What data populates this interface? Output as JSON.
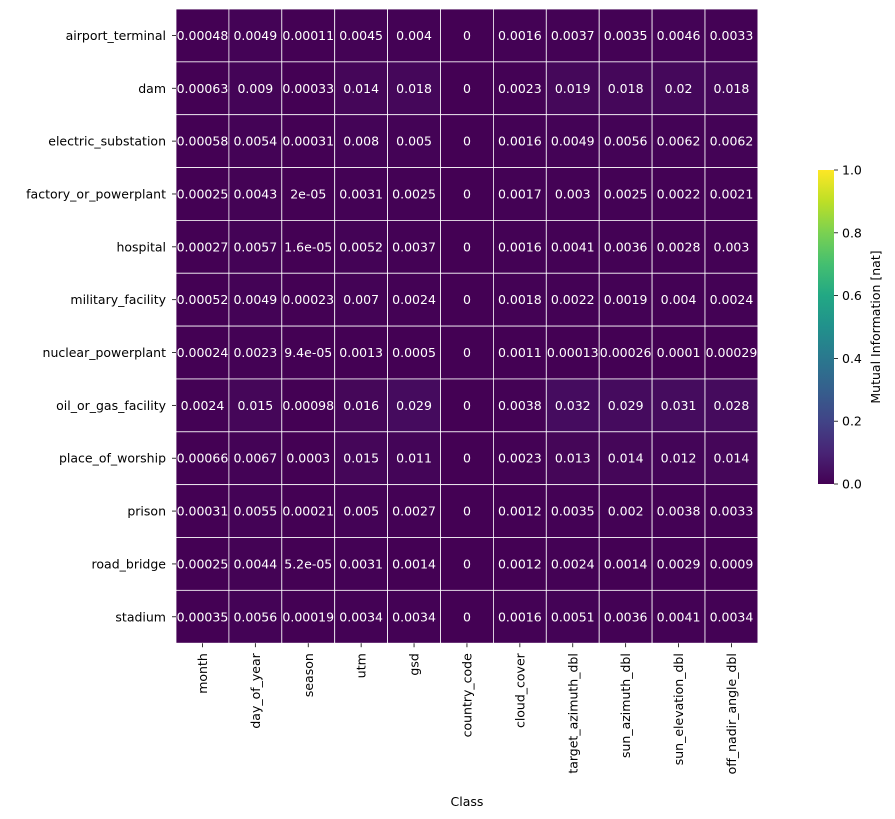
{
  "chart_data": {
    "type": "heatmap",
    "title": "",
    "xlabel": "Class",
    "ylabel": "",
    "x_categories": [
      "month",
      "day_of_year",
      "season",
      "utm",
      "gsd",
      "country_code",
      "cloud_cover",
      "target_azimuth_dbl",
      "sun_azimuth_dbl",
      "sun_elevation_dbl",
      "off_nadir_angle_dbl"
    ],
    "y_categories": [
      "airport_terminal",
      "dam",
      "electric_substation",
      "factory_or_powerplant",
      "hospital",
      "military_facility",
      "nuclear_powerplant",
      "oil_or_gas_facility",
      "place_of_worship",
      "prison",
      "road_bridge",
      "stadium"
    ],
    "values": [
      [
        0.00048,
        0.0049,
        0.00011,
        0.0045,
        0.004,
        0,
        0.0016,
        0.0037,
        0.0035,
        0.0046,
        0.0033
      ],
      [
        0.00063,
        0.009,
        0.00033,
        0.014,
        0.018,
        0,
        0.0023,
        0.019,
        0.018,
        0.02,
        0.018
      ],
      [
        0.00058,
        0.0054,
        0.00031,
        0.008,
        0.005,
        0,
        0.0016,
        0.0049,
        0.0056,
        0.0062,
        0.0062
      ],
      [
        0.00025,
        0.0043,
        2e-05,
        0.0031,
        0.0025,
        0,
        0.0017,
        0.003,
        0.0025,
        0.0022,
        0.0021
      ],
      [
        0.00027,
        0.0057,
        1.6e-05,
        0.0052,
        0.0037,
        0,
        0.0016,
        0.0041,
        0.0036,
        0.0028,
        0.003
      ],
      [
        0.00052,
        0.0049,
        0.00023,
        0.007,
        0.0024,
        0,
        0.0018,
        0.0022,
        0.0019,
        0.004,
        0.0024
      ],
      [
        0.00024,
        0.0023,
        9.4e-05,
        0.0013,
        0.0005,
        0,
        0.0011,
        0.00013,
        0.00026,
        0.0001,
        0.00029
      ],
      [
        0.0024,
        0.015,
        0.00098,
        0.016,
        0.029,
        0,
        0.0038,
        0.032,
        0.029,
        0.031,
        0.028
      ],
      [
        0.00066,
        0.0067,
        0.0003,
        0.015,
        0.011,
        0,
        0.0023,
        0.013,
        0.014,
        0.012,
        0.014
      ],
      [
        0.00031,
        0.0055,
        0.00021,
        0.005,
        0.0027,
        0,
        0.0012,
        0.0035,
        0.002,
        0.0038,
        0.0033
      ],
      [
        0.00025,
        0.0044,
        5.2e-05,
        0.0031,
        0.0014,
        0,
        0.0012,
        0.0024,
        0.0014,
        0.0029,
        0.0009
      ],
      [
        0.00035,
        0.0056,
        0.00019,
        0.0034,
        0.0034,
        0,
        0.0016,
        0.0051,
        0.0036,
        0.0041,
        0.0034
      ]
    ],
    "cell_labels": [
      [
        "0.00048",
        "0.0049",
        "0.00011",
        "0.0045",
        "0.004",
        "0",
        "0.0016",
        "0.0037",
        "0.0035",
        "0.0046",
        "0.0033"
      ],
      [
        "0.00063",
        "0.009",
        "0.00033",
        "0.014",
        "0.018",
        "0",
        "0.0023",
        "0.019",
        "0.018",
        "0.02",
        "0.018"
      ],
      [
        "0.00058",
        "0.0054",
        "0.00031",
        "0.008",
        "0.005",
        "0",
        "0.0016",
        "0.0049",
        "0.0056",
        "0.0062",
        "0.0062"
      ],
      [
        "0.00025",
        "0.0043",
        "2e-05",
        "0.0031",
        "0.0025",
        "0",
        "0.0017",
        "0.003",
        "0.0025",
        "0.0022",
        "0.0021"
      ],
      [
        "0.00027",
        "0.0057",
        "1.6e-05",
        "0.0052",
        "0.0037",
        "0",
        "0.0016",
        "0.0041",
        "0.0036",
        "0.0028",
        "0.003"
      ],
      [
        "0.00052",
        "0.0049",
        "0.00023",
        "0.007",
        "0.0024",
        "0",
        "0.0018",
        "0.0022",
        "0.0019",
        "0.004",
        "0.0024"
      ],
      [
        "0.00024",
        "0.0023",
        "9.4e-05",
        "0.0013",
        "0.0005",
        "0",
        "0.0011",
        "0.00013",
        "0.00026",
        "0.0001",
        "0.00029"
      ],
      [
        "0.0024",
        "0.015",
        "0.00098",
        "0.016",
        "0.029",
        "0",
        "0.0038",
        "0.032",
        "0.029",
        "0.031",
        "0.028"
      ],
      [
        "0.00066",
        "0.0067",
        "0.0003",
        "0.015",
        "0.011",
        "0",
        "0.0023",
        "0.013",
        "0.014",
        "0.012",
        "0.014"
      ],
      [
        "0.00031",
        "0.0055",
        "0.00021",
        "0.005",
        "0.0027",
        "0",
        "0.0012",
        "0.0035",
        "0.002",
        "0.0038",
        "0.0033"
      ],
      [
        "0.00025",
        "0.0044",
        "5.2e-05",
        "0.0031",
        "0.0014",
        "0",
        "0.0012",
        "0.0024",
        "0.0014",
        "0.0029",
        "0.0009"
      ],
      [
        "0.00035",
        "0.0056",
        "0.00019",
        "0.0034",
        "0.0034",
        "0",
        "0.0016",
        "0.0051",
        "0.0036",
        "0.0041",
        "0.0034"
      ]
    ],
    "colormap": "viridis",
    "vmin": 0,
    "vmax": 1,
    "colorbar": {
      "label": "Mutual Information [nat]",
      "ticks": [
        0.0,
        0.2,
        0.4,
        0.6,
        0.8,
        1.0
      ],
      "tick_labels": [
        "0.0",
        "0.2",
        "0.4",
        "0.6",
        "0.8",
        "1.0"
      ]
    },
    "grid": true,
    "cell_border_color": "#ffffff",
    "text_color": "#ffffff"
  }
}
